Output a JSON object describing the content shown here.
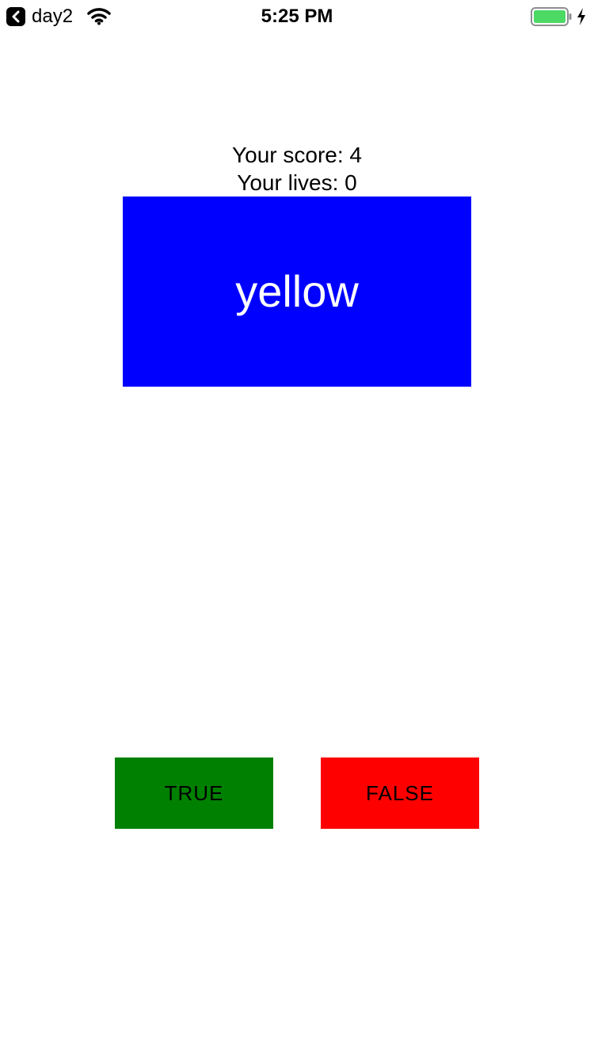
{
  "status_bar": {
    "back_app_label": "day2",
    "time": "5:25 PM",
    "battery_color": "#4cd964",
    "icons": [
      "chevron-left-icon",
      "wifi-icon",
      "battery-icon",
      "charging-bolt-icon"
    ]
  },
  "game": {
    "score_text": "Your score: 4",
    "lives_text": "Your lives: 0",
    "word": "yellow",
    "card_color": "#0000ff",
    "word_color": "#ffffff"
  },
  "buttons": {
    "true_label": "TRUE",
    "true_color": "#008000",
    "false_label": "FALSE",
    "false_color": "#ff0000"
  }
}
